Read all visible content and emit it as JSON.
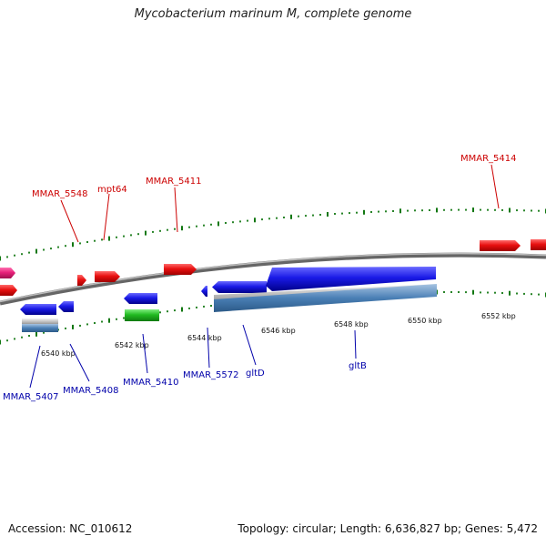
{
  "title": "Mycobacterium marinum M, complete genome",
  "footer": {
    "accession": "Accession: NC_010612",
    "summary": "Topology: circular; Length: 6,636,827 bp; Genes: 5,472"
  },
  "scale_labels": [
    "6540 kbp",
    "6542 kbp",
    "6544 kbp",
    "6546 kbp",
    "6548 kbp",
    "6550 kbp",
    "6552 kbp"
  ],
  "forward_labels": [
    "MMAR_5548",
    "mpt64",
    "MMAR_5411",
    "MMAR_5414"
  ],
  "reverse_labels": [
    "MMAR_5407",
    "MMAR_5408",
    "MMAR_5410",
    "MMAR_5572",
    "gltD",
    "gltB"
  ],
  "colors": {
    "forward_gene": "#e81010",
    "reverse_gene": "#1a1ae6",
    "pink_gene": "#e8207a",
    "green_gene": "#22bb22",
    "backbone": "#808080",
    "tick": "#117711",
    "steel_feature": "#4a7fb5"
  }
}
